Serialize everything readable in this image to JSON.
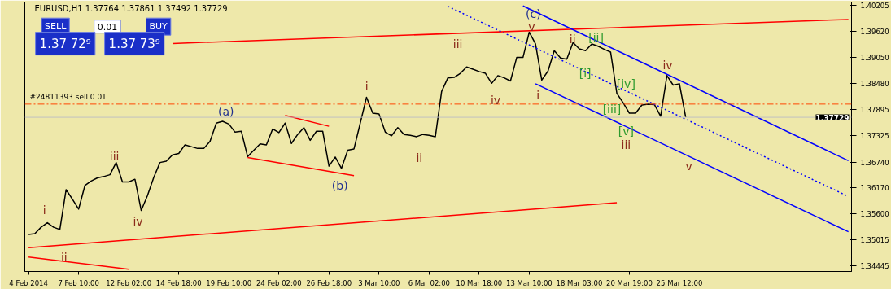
{
  "chart_data": {
    "type": "line",
    "title": "EURUSD,H1 1.37764 1.37861 1.37492 1.37729",
    "categories": [
      "4 Feb 2014",
      null,
      null,
      null,
      null,
      null,
      null,
      null,
      "7 Feb 10:00",
      null,
      null,
      null,
      null,
      null,
      null,
      null,
      "12 Feb 02:00",
      null,
      null,
      null,
      null,
      null,
      null,
      null,
      "14 Feb 18:00",
      null,
      null,
      null,
      null,
      null,
      null,
      null,
      "19 Feb 10:00",
      null,
      null,
      null,
      null,
      null,
      null,
      null,
      "24 Feb 02:00",
      null,
      null,
      null,
      null,
      null,
      null,
      null,
      "26 Feb 18:00",
      null,
      null,
      null,
      null,
      null,
      null,
      null,
      "3 Mar 10:00",
      null,
      null,
      null,
      null,
      null,
      null,
      null,
      "6 Mar 02:00",
      null,
      null,
      null,
      null,
      null,
      null,
      null,
      "10 Mar 18:00",
      null,
      null,
      null,
      null,
      null,
      null,
      null,
      "13 Mar 10:00",
      null,
      null,
      null,
      null,
      null,
      null,
      null,
      "18 Mar 03:00",
      null,
      null,
      null,
      null,
      null,
      null,
      null,
      "20 Mar 19:00",
      null,
      null,
      null,
      null,
      null,
      null,
      null,
      "25 Mar 12:00",
      null,
      null,
      null,
      null,
      null,
      null,
      null,
      null,
      null,
      null,
      null,
      null,
      null,
      null,
      null,
      null,
      null,
      null,
      null,
      null,
      null,
      null,
      null,
      null,
      null,
      null,
      null
    ],
    "ylim": [
      1.34322,
      1.40275
    ],
    "yticks": [
      {
        "value": 1.40205,
        "label": "1.40205"
      },
      {
        "value": 1.3962,
        "label": "1.39620"
      },
      {
        "value": 1.3905,
        "label": "1.39050"
      },
      {
        "value": 1.3848,
        "label": "1.38480"
      },
      {
        "value": 1.37895,
        "label": "1.37895"
      },
      {
        "value": 1.37325,
        "label": "1.37325"
      },
      {
        "value": 1.3674,
        "label": "1.36740"
      },
      {
        "value": 1.3617,
        "label": "1.36170"
      },
      {
        "value": 1.356,
        "label": "1.35600"
      },
      {
        "value": 1.35015,
        "label": "1.35015"
      },
      {
        "value": 1.34445,
        "label": "1.34445"
      }
    ],
    "series": [
      {
        "color": "#000000",
        "values": [
          1.3514,
          1.3516,
          1.353,
          1.354,
          1.353,
          1.3525,
          1.3613,
          1.3592,
          1.357,
          1.3622,
          1.3632,
          1.3639,
          1.3642,
          1.3646,
          1.3673,
          1.363,
          1.363,
          1.3636,
          1.3567,
          1.36,
          1.364,
          1.3673,
          1.3676,
          1.369,
          1.3693,
          1.3712,
          1.3708,
          1.3704,
          1.3704,
          1.372,
          1.376,
          1.3764,
          1.3758,
          1.374,
          1.3742,
          1.3686,
          1.37,
          1.3714,
          1.3712,
          1.3747,
          1.3739,
          1.376,
          1.3715,
          1.3735,
          1.375,
          1.3722,
          1.3742,
          1.3742,
          1.3665,
          1.3685,
          1.366,
          1.37,
          1.3703,
          1.376,
          1.3817,
          1.3782,
          1.378,
          1.374,
          1.3732,
          1.375,
          1.3735,
          1.3733,
          1.373,
          1.3735,
          1.3733,
          1.373,
          1.383,
          1.386,
          1.3861,
          1.387,
          1.3884,
          1.3879,
          1.3874,
          1.387,
          1.3848,
          1.3865,
          1.386,
          1.3853,
          1.3905,
          1.3905,
          1.3961,
          1.3935,
          1.3855,
          1.3875,
          1.392,
          1.3904,
          1.3901,
          1.3938,
          1.3924,
          1.392,
          1.3935,
          1.393,
          1.3923,
          1.3917,
          1.3826,
          1.3805,
          1.3782,
          1.3782,
          1.38,
          1.3802,
          1.3801,
          1.3775,
          1.3865,
          1.3844,
          1.3847,
          1.3773,
          null,
          null,
          null,
          null,
          null,
          null,
          null,
          null,
          null,
          null,
          null,
          null,
          null,
          null,
          null,
          null,
          null,
          null,
          null,
          null,
          null,
          null,
          null,
          null,
          null,
          null
        ]
      },
      {
        "color": "#ff0000",
        "values": [
          null,
          null,
          null,
          null,
          null,
          null,
          null,
          null,
          null,
          null,
          null,
          null,
          null,
          null,
          null,
          null,
          null,
          null,
          null,
          null,
          null,
          null,
          null,
          1.3936,
          null,
          null,
          null,
          null,
          null,
          null,
          null,
          null,
          null,
          null,
          null,
          null,
          null,
          null,
          null,
          null,
          null,
          null,
          null,
          null,
          null,
          null,
          null,
          null,
          null,
          null,
          null,
          null,
          null,
          null,
          null,
          null,
          null,
          null,
          null,
          null,
          null,
          null,
          null,
          null,
          null,
          null,
          null,
          null,
          null,
          null,
          null,
          null,
          null,
          null,
          null,
          null,
          null,
          null,
          null,
          null,
          null,
          null,
          null,
          null,
          null,
          null,
          null,
          null,
          null,
          null,
          null,
          null,
          null,
          null,
          null,
          null,
          null,
          null,
          null,
          null,
          null,
          null,
          null,
          null,
          null,
          null,
          null,
          null,
          null,
          null,
          null,
          null,
          null,
          null,
          null,
          null,
          null,
          null,
          null,
          null,
          null,
          null,
          null,
          null,
          null,
          null,
          null,
          null,
          null,
          null,
          null,
          1.3989
        ]
      },
      {
        "color": "#ff0000",
        "values": [
          1.3485,
          null,
          null,
          null,
          null,
          null,
          null,
          null,
          null,
          null,
          null,
          null,
          null,
          null,
          null,
          null,
          null,
          null,
          null,
          null,
          null,
          null,
          null,
          null,
          null,
          null,
          null,
          null,
          null,
          null,
          null,
          null,
          null,
          null,
          null,
          null,
          null,
          null,
          null,
          null,
          null,
          null,
          null,
          null,
          null,
          null,
          null,
          null,
          null,
          null,
          null,
          null,
          null,
          null,
          null,
          null,
          null,
          null,
          null,
          null,
          null,
          null,
          null,
          null,
          null,
          null,
          null,
          null,
          null,
          null,
          null,
          null,
          null,
          null,
          null,
          null,
          null,
          null,
          null,
          null,
          null,
          null,
          null,
          null,
          null,
          null,
          null,
          null,
          null,
          null,
          null,
          null,
          null,
          null,
          1.3584,
          null,
          null,
          null,
          null,
          null,
          null,
          null,
          null,
          null,
          null,
          null,
          null,
          null,
          null,
          null,
          null,
          null,
          null,
          null,
          null,
          null,
          null,
          null,
          null,
          null,
          null,
          null,
          null,
          null,
          null,
          null,
          null,
          null,
          null,
          null,
          null,
          null
        ]
      },
      {
        "color": "#ff0000",
        "values": [
          1.3464,
          null,
          null,
          null,
          null,
          null,
          null,
          null,
          null,
          null,
          null,
          null,
          null,
          null,
          null,
          null,
          1.3437,
          null,
          null,
          null,
          null,
          null,
          null,
          null,
          null,
          null,
          null,
          null,
          null,
          null,
          null,
          null,
          null,
          null,
          null,
          null,
          null,
          null,
          null,
          null,
          null,
          null,
          null,
          null,
          null,
          null,
          null,
          null,
          null,
          null,
          null,
          null,
          null,
          null,
          null,
          null,
          null,
          null,
          null,
          null,
          null,
          null,
          null,
          null,
          null,
          null,
          null,
          null,
          null,
          null,
          null,
          null,
          null,
          null,
          null,
          null,
          null,
          null,
          null,
          null,
          null,
          null,
          null,
          null,
          null,
          null,
          null,
          null,
          null,
          null,
          null,
          null,
          null,
          null,
          null,
          null,
          null,
          null,
          null,
          null,
          null,
          null,
          null,
          null,
          null,
          null,
          null,
          null,
          null,
          null,
          null,
          null,
          null,
          null,
          null,
          null,
          null,
          null,
          null,
          null,
          null,
          null,
          null,
          null,
          null,
          null,
          null,
          null,
          null,
          null,
          null,
          null
        ]
      },
      {
        "color": "#ff0000",
        "values": [
          null,
          null,
          null,
          null,
          null,
          null,
          null,
          null,
          null,
          null,
          null,
          null,
          null,
          null,
          null,
          null,
          null,
          null,
          null,
          null,
          null,
          null,
          null,
          null,
          null,
          null,
          null,
          null,
          null,
          null,
          null,
          null,
          null,
          null,
          null,
          null,
          null,
          null,
          null,
          null,
          null,
          1.3777,
          null,
          null,
          null,
          null,
          null,
          null,
          1.3753,
          null,
          null,
          null,
          null,
          null,
          null,
          null,
          null,
          null,
          null,
          null,
          null,
          null,
          null,
          null,
          null,
          null,
          null,
          null,
          null,
          null,
          null,
          null,
          null,
          null,
          null,
          null,
          null,
          null,
          null,
          null,
          null,
          null,
          null,
          null,
          null,
          null,
          null,
          null,
          null,
          null,
          null,
          null,
          null,
          null,
          null,
          null,
          null,
          null,
          null,
          null,
          null,
          null,
          null,
          null,
          null,
          null,
          null,
          null,
          null,
          null,
          null,
          null,
          null,
          null,
          null,
          null,
          null,
          null,
          null,
          null,
          null,
          null,
          null,
          null,
          null,
          null,
          null,
          null,
          null,
          null,
          null,
          null
        ]
      },
      {
        "color": "#ff0000",
        "values": [
          null,
          null,
          null,
          null,
          null,
          null,
          null,
          null,
          null,
          null,
          null,
          null,
          null,
          null,
          null,
          null,
          null,
          null,
          null,
          null,
          null,
          null,
          null,
          null,
          null,
          null,
          null,
          null,
          null,
          null,
          null,
          null,
          null,
          null,
          null,
          1.3684,
          null,
          null,
          null,
          null,
          null,
          null,
          null,
          null,
          null,
          null,
          null,
          null,
          null,
          null,
          null,
          null,
          1.3644,
          null,
          null,
          null,
          null,
          null,
          null,
          null,
          null,
          null,
          null,
          null,
          null,
          null,
          null,
          null,
          null,
          null,
          null,
          null,
          null,
          null,
          null,
          null,
          null,
          null,
          null,
          null,
          null,
          null,
          null,
          null,
          null,
          null,
          null,
          null,
          null,
          null,
          null,
          null,
          null,
          null,
          null,
          null,
          null,
          null,
          null,
          null,
          null,
          null,
          null,
          null,
          null,
          null,
          null,
          null,
          null,
          null,
          null,
          null,
          null,
          null,
          null,
          null,
          null,
          null,
          null,
          null,
          null,
          null,
          null,
          null,
          null,
          null,
          null,
          null,
          null,
          null,
          null,
          null
        ]
      },
      {
        "color": "#0000ff",
        "values": [
          null,
          null,
          null,
          null,
          null,
          null,
          null,
          null,
          null,
          null,
          null,
          null,
          null,
          null,
          null,
          null,
          null,
          null,
          null,
          null,
          null,
          null,
          null,
          null,
          null,
          null,
          null,
          null,
          null,
          null,
          null,
          null,
          null,
          null,
          null,
          null,
          null,
          null,
          null,
          null,
          null,
          null,
          null,
          null,
          null,
          null,
          null,
          null,
          null,
          null,
          null,
          null,
          null,
          null,
          null,
          null,
          null,
          null,
          null,
          null,
          null,
          null,
          null,
          null,
          null,
          null,
          null,
          null,
          null,
          null,
          null,
          null,
          null,
          null,
          null,
          null,
          null,
          null,
          null,
          1.4019,
          null,
          null,
          null,
          null,
          null,
          null,
          null,
          null,
          null,
          null,
          null,
          null,
          null,
          null,
          null,
          null,
          null,
          null,
          null,
          null,
          null,
          null,
          null,
          null,
          null,
          null,
          null,
          null,
          null,
          null,
          null,
          null,
          null,
          null,
          null,
          null,
          null,
          null,
          null,
          null,
          null,
          null,
          null,
          null,
          null,
          null,
          null,
          null,
          null,
          null,
          null,
          1.3677
        ]
      },
      {
        "color": "#0000ff",
        "values": [
          null,
          null,
          null,
          null,
          null,
          null,
          null,
          null,
          null,
          null,
          null,
          null,
          null,
          null,
          null,
          null,
          null,
          null,
          null,
          null,
          null,
          null,
          null,
          null,
          null,
          null,
          null,
          null,
          null,
          null,
          null,
          null,
          null,
          null,
          null,
          null,
          null,
          null,
          null,
          null,
          null,
          null,
          null,
          null,
          null,
          null,
          null,
          null,
          null,
          null,
          null,
          null,
          null,
          null,
          null,
          null,
          null,
          null,
          null,
          null,
          null,
          null,
          null,
          null,
          null,
          null,
          null,
          null,
          null,
          null,
          null,
          null,
          null,
          null,
          null,
          null,
          null,
          null,
          null,
          null,
          null,
          1.3847,
          null,
          null,
          null,
          null,
          null,
          null,
          null,
          null,
          null,
          null,
          null,
          null,
          null,
          null,
          null,
          null,
          null,
          null,
          null,
          null,
          null,
          null,
          null,
          null,
          null,
          null,
          null,
          null,
          null,
          null,
          null,
          null,
          null,
          null,
          null,
          null,
          null,
          null,
          null,
          null,
          null,
          null,
          null,
          null,
          null,
          null,
          null,
          null,
          null,
          1.352
        ]
      },
      {
        "color": "#0000ff",
        "line_style": "dotted",
        "values": [
          null,
          null,
          null,
          null,
          null,
          null,
          null,
          null,
          null,
          null,
          null,
          null,
          null,
          null,
          null,
          null,
          null,
          null,
          null,
          null,
          null,
          null,
          null,
          null,
          null,
          null,
          null,
          null,
          null,
          null,
          null,
          null,
          null,
          null,
          null,
          null,
          null,
          null,
          null,
          null,
          null,
          null,
          null,
          null,
          null,
          null,
          null,
          null,
          null,
          null,
          null,
          null,
          null,
          null,
          null,
          null,
          null,
          null,
          null,
          null,
          null,
          null,
          null,
          null,
          null,
          null,
          null,
          1.4018,
          null,
          null,
          null,
          null,
          null,
          null,
          null,
          null,
          null,
          null,
          null,
          null,
          null,
          null,
          null,
          null,
          null,
          null,
          null,
          null,
          null,
          null,
          null,
          null,
          null,
          null,
          null,
          null,
          null,
          null,
          null,
          null,
          null,
          null,
          null,
          null,
          null,
          null,
          null,
          null,
          null,
          null,
          null,
          null,
          null,
          null,
          null,
          null,
          null,
          null,
          null,
          null,
          null,
          null,
          null,
          null,
          null,
          null,
          null,
          null,
          null,
          null,
          null,
          1.3598
        ]
      }
    ],
    "ref_lines": [
      {
        "axis": "y",
        "value": 1.3802,
        "label": "#24811393 sell 0.01",
        "color": "#ff4500",
        "line_style": "dashdot"
      },
      {
        "axis": "y",
        "value": 1.37729,
        "label": "1.37729",
        "color": "#c0c0c0",
        "line_style": "solid"
      }
    ],
    "annotations": [
      "SELL",
      "0.01",
      "BUY",
      "1.37 72⁹",
      "1.37 73⁹",
      "i",
      "ii",
      "iii",
      "iv",
      "(a)",
      "(b)",
      "i",
      "ii",
      "iii",
      "iv",
      "(c)",
      "v",
      "i",
      "ii",
      "[i]",
      "[ii]",
      "[iii]",
      "[iv]",
      "[v]",
      "iii",
      "iv",
      "v"
    ]
  }
}
